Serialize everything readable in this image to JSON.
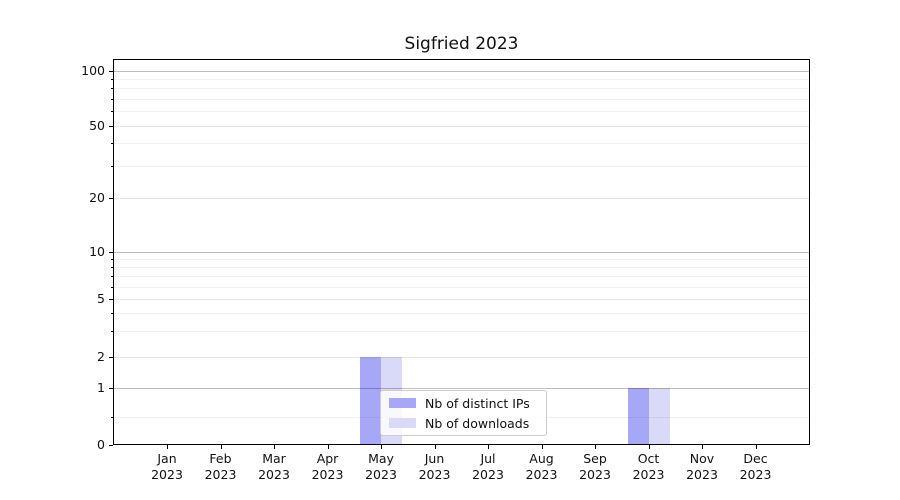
{
  "title": "Sigfried 2023",
  "chart_data": {
    "type": "bar",
    "title": "Sigfried 2023",
    "categories": [
      "Jan 2023",
      "Feb 2023",
      "Mar 2023",
      "Apr 2023",
      "May 2023",
      "Jun 2023",
      "Jul 2023",
      "Aug 2023",
      "Sep 2023",
      "Oct 2023",
      "Nov 2023",
      "Dec 2023"
    ],
    "series": [
      {
        "name": "Nb of distinct IPs",
        "color": "#a7a7f7",
        "values": [
          0,
          0,
          0,
          0,
          2,
          0,
          0,
          0,
          0,
          1,
          0,
          0
        ]
      },
      {
        "name": "Nb of downloads",
        "color": "#d9d9f8",
        "values": [
          0,
          0,
          0,
          0,
          2,
          0,
          0,
          0,
          0,
          1,
          0,
          0
        ]
      }
    ],
    "xlabel": "",
    "ylabel": "",
    "yscale": "log-like (0,1,2,5,10,20,50,100)",
    "yticks": [
      0,
      1,
      2,
      5,
      10,
      20,
      50,
      100
    ],
    "ytick_labels": [
      "0",
      "1",
      "2",
      "5",
      "10",
      "20",
      "50",
      "100"
    ],
    "minor_gridline_values": [
      0.5,
      3,
      4,
      6,
      7,
      8,
      9,
      30,
      40,
      60,
      70,
      80,
      90
    ],
    "emphasized_gridline_values": [
      1,
      10,
      100
    ],
    "ylim": [
      0,
      110
    ],
    "grid": true,
    "legend_position": "lower center",
    "legend": [
      "Nb of distinct IPs",
      "Nb of downloads"
    ]
  }
}
